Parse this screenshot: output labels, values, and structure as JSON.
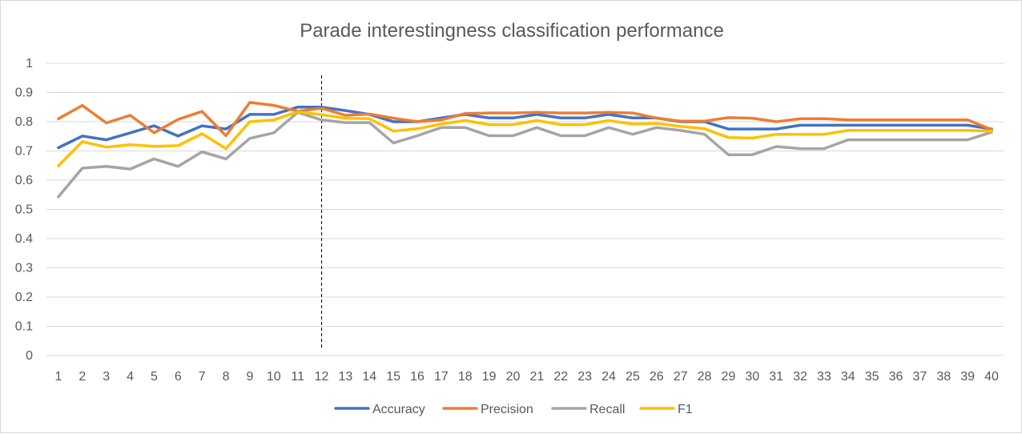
{
  "chart_data": {
    "type": "line",
    "title": "Parade interestingness classification performance",
    "xlabel": "",
    "ylabel": "",
    "ylim": [
      0,
      1
    ],
    "yticks": [
      "0",
      "0.1",
      "0.2",
      "0.3",
      "0.4",
      "0.5",
      "0.6",
      "0.7",
      "0.8",
      "0.9",
      "1"
    ],
    "categories": [
      "1",
      "2",
      "3",
      "4",
      "5",
      "6",
      "7",
      "8",
      "9",
      "10",
      "11",
      "12",
      "13",
      "14",
      "15",
      "16",
      "17",
      "18",
      "19",
      "20",
      "21",
      "22",
      "23",
      "24",
      "25",
      "26",
      "27",
      "28",
      "29",
      "30",
      "31",
      "32",
      "33",
      "34",
      "35",
      "36",
      "37",
      "38",
      "39",
      "40"
    ],
    "grid": true,
    "legend_position": "bottom",
    "vertical_marker": {
      "category": "12",
      "style": "dashed"
    },
    "series": [
      {
        "name": "Accuracy",
        "color": "#4472c4",
        "values": [
          0.711,
          0.751,
          0.738,
          0.762,
          0.786,
          0.751,
          0.786,
          0.775,
          0.825,
          0.825,
          0.85,
          0.85,
          0.838,
          0.825,
          0.8,
          0.8,
          0.813,
          0.825,
          0.813,
          0.813,
          0.825,
          0.813,
          0.813,
          0.825,
          0.813,
          0.813,
          0.8,
          0.8,
          0.775,
          0.775,
          0.775,
          0.788,
          0.788,
          0.788,
          0.788,
          0.788,
          0.788,
          0.788,
          0.788,
          0.775
        ]
      },
      {
        "name": "Precision",
        "color": "#ed7d31",
        "values": [
          0.81,
          0.856,
          0.796,
          0.822,
          0.762,
          0.808,
          0.835,
          0.752,
          0.866,
          0.856,
          0.836,
          0.846,
          0.822,
          0.826,
          0.812,
          0.8,
          0.806,
          0.828,
          0.83,
          0.83,
          0.832,
          0.83,
          0.83,
          0.832,
          0.83,
          0.812,
          0.802,
          0.802,
          0.814,
          0.812,
          0.8,
          0.81,
          0.81,
          0.806,
          0.806,
          0.806,
          0.806,
          0.806,
          0.806,
          0.773
        ]
      },
      {
        "name": "Recall",
        "color": "#a5a5a5",
        "values": [
          0.543,
          0.641,
          0.647,
          0.638,
          0.673,
          0.647,
          0.697,
          0.673,
          0.743,
          0.762,
          0.832,
          0.806,
          0.797,
          0.797,
          0.727,
          0.752,
          0.78,
          0.78,
          0.752,
          0.752,
          0.78,
          0.752,
          0.752,
          0.78,
          0.757,
          0.78,
          0.77,
          0.757,
          0.687,
          0.687,
          0.715,
          0.708,
          0.708,
          0.738,
          0.738,
          0.738,
          0.738,
          0.738,
          0.738,
          0.764
        ]
      },
      {
        "name": "F1",
        "color": "#ffc000",
        "values": [
          0.649,
          0.732,
          0.713,
          0.721,
          0.716,
          0.718,
          0.759,
          0.708,
          0.8,
          0.806,
          0.834,
          0.824,
          0.812,
          0.81,
          0.768,
          0.776,
          0.792,
          0.804,
          0.79,
          0.79,
          0.804,
          0.79,
          0.79,
          0.804,
          0.792,
          0.794,
          0.784,
          0.776,
          0.746,
          0.744,
          0.757,
          0.757,
          0.757,
          0.77,
          0.77,
          0.77,
          0.77,
          0.77,
          0.77,
          0.768
        ]
      }
    ]
  }
}
